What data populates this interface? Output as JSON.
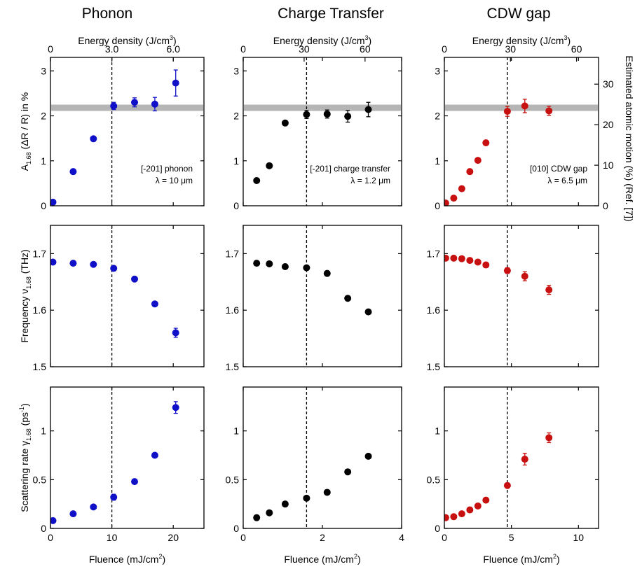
{
  "figure": {
    "columns": [
      {
        "title": "Phonon",
        "top_xlabel": "Energy density (J/cm",
        "top_xlabel_sup": "3",
        "top_xlabel_end": ")",
        "bottom_xlabel": "Fluence (mJ/cm",
        "bottom_xlabel_sup": "2",
        "bottom_xlabel_end": ")",
        "annotation_line1": "[-201] phonon",
        "annotation_line2": "λ = 10 μm"
      },
      {
        "title": "Charge Transfer",
        "top_xlabel": "Energy density (J/cm",
        "top_xlabel_sup": "3",
        "top_xlabel_end": ")",
        "bottom_xlabel": "Fluence (mJ/cm",
        "bottom_xlabel_sup": "2",
        "bottom_xlabel_end": ")",
        "annotation_line1": "[-201] charge transfer",
        "annotation_line2": "λ = 1.2 μm"
      },
      {
        "title": "CDW gap",
        "top_xlabel": "Energy density (J/cm",
        "top_xlabel_sup": "3",
        "top_xlabel_end": ")",
        "bottom_xlabel": "Fluence (mJ/cm",
        "bottom_xlabel_sup": "2",
        "bottom_xlabel_end": ")",
        "annotation_line1": "[010] CDW gap",
        "annotation_line2": "λ = 6.5 μm"
      }
    ],
    "row_ylabels": {
      "amplitude": {
        "main": "A",
        "sub": "1.68",
        "rest": " (ΔR / R) in %"
      },
      "frequency": {
        "main": "Frequency ν",
        "sub": "1.68",
        "rest": " (THz)"
      },
      "scattering": {
        "main": "Scattering rate γ",
        "sub": "1.68",
        "rest": " (ps",
        "sup": "-1",
        "end": ")"
      }
    },
    "right_ylabel": "Estimated atomic motion (%) (Ref. [7])"
  },
  "chart_data": [
    {
      "type": "scatter",
      "column": "Phonon",
      "quantity": "amplitude",
      "color": "#1010c8",
      "x": [
        0.4,
        3.7,
        7.0,
        10.3,
        13.7,
        17.0,
        20.4
      ],
      "y": [
        0.08,
        0.76,
        1.49,
        2.22,
        2.3,
        2.26,
        2.73
      ],
      "yerr": [
        0,
        0,
        0,
        0.08,
        0.1,
        0.15,
        0.29
      ],
      "xlim": [
        0,
        25
      ],
      "xticks": [
        0,
        10,
        20
      ],
      "ylim": [
        0,
        3.3
      ],
      "yticks": [
        0,
        1,
        2,
        3
      ],
      "top_axis": {
        "range": [
          0,
          7.5
        ],
        "ticks": [
          0,
          3.0,
          6.0
        ],
        "tick_labels": [
          "0",
          "3.0",
          "6.0"
        ]
      },
      "threshold_x": 10.0,
      "band_y": 2.18
    },
    {
      "type": "scatter",
      "column": "Phonon",
      "quantity": "frequency",
      "color": "#1010c8",
      "x": [
        0.4,
        3.7,
        7.0,
        10.3,
        13.7,
        17.0,
        20.4
      ],
      "y": [
        1.685,
        1.683,
        1.681,
        1.674,
        1.655,
        1.611,
        1.56
      ],
      "yerr": [
        0,
        0,
        0,
        0,
        0,
        0,
        0.008
      ],
      "xlim": [
        0,
        25
      ],
      "xticks": [
        0,
        10,
        20
      ],
      "ylim": [
        1.5,
        1.75
      ],
      "yticks": [
        1.5,
        1.6,
        1.7
      ],
      "threshold_x": 10.0
    },
    {
      "type": "scatter",
      "column": "Phonon",
      "quantity": "scattering",
      "color": "#1010c8",
      "x": [
        0.4,
        3.7,
        7.0,
        10.3,
        13.7,
        17.0,
        20.4
      ],
      "y": [
        0.08,
        0.15,
        0.22,
        0.32,
        0.48,
        0.75,
        1.24
      ],
      "yerr": [
        0,
        0,
        0,
        0.03,
        0,
        0,
        0.06
      ],
      "xlim": [
        0,
        25
      ],
      "xticks": [
        0,
        10,
        20
      ],
      "ylim": [
        0,
        1.45
      ],
      "yticks": [
        0,
        0.5,
        1.0
      ],
      "threshold_x": 10.0
    },
    {
      "type": "scatter",
      "column": "Charge Transfer",
      "quantity": "amplitude",
      "color": "#000000",
      "x": [
        0.34,
        0.66,
        1.06,
        1.6,
        2.12,
        2.64,
        3.16
      ],
      "y": [
        0.56,
        0.89,
        1.84,
        2.03,
        2.04,
        1.99,
        2.14
      ],
      "yerr": [
        0,
        0,
        0,
        0.09,
        0.09,
        0.13,
        0.16
      ],
      "xlim": [
        0,
        4
      ],
      "xticks": [
        0,
        2,
        4
      ],
      "ylim": [
        0,
        3.3
      ],
      "yticks": [
        0,
        1,
        2,
        3
      ],
      "top_axis": {
        "range": [
          0,
          78
        ],
        "ticks": [
          0,
          30,
          60
        ],
        "tick_labels": [
          "0",
          "30",
          "60"
        ]
      },
      "threshold_x": 1.6,
      "band_y": 2.18
    },
    {
      "type": "scatter",
      "column": "Charge Transfer",
      "quantity": "frequency",
      "color": "#000000",
      "x": [
        0.34,
        0.66,
        1.06,
        1.6,
        2.12,
        2.64,
        3.16
      ],
      "y": [
        1.683,
        1.682,
        1.677,
        1.675,
        1.665,
        1.621,
        1.597
      ],
      "yerr": [
        0,
        0,
        0,
        0,
        0,
        0,
        0
      ],
      "xlim": [
        0,
        4
      ],
      "xticks": [
        0,
        2,
        4
      ],
      "ylim": [
        1.5,
        1.75
      ],
      "yticks": [
        1.5,
        1.6,
        1.7
      ],
      "threshold_x": 1.6
    },
    {
      "type": "scatter",
      "column": "Charge Transfer",
      "quantity": "scattering",
      "color": "#000000",
      "x": [
        0.34,
        0.66,
        1.06,
        1.6,
        2.12,
        2.64,
        3.16
      ],
      "y": [
        0.11,
        0.16,
        0.25,
        0.31,
        0.37,
        0.58,
        0.74
      ],
      "yerr": [
        0,
        0,
        0,
        0,
        0,
        0,
        0
      ],
      "xlim": [
        0,
        4
      ],
      "xticks": [
        0,
        2,
        4
      ],
      "ylim": [
        0,
        1.45
      ],
      "yticks": [
        0,
        0.5,
        1.0
      ],
      "threshold_x": 1.6
    },
    {
      "type": "scatter",
      "column": "CDW gap",
      "quantity": "amplitude",
      "color": "#c81010",
      "x": [
        0.1,
        0.7,
        1.3,
        1.9,
        2.5,
        3.1,
        4.7,
        6.0,
        7.8
      ],
      "y": [
        0.06,
        0.17,
        0.38,
        0.76,
        1.01,
        1.4,
        2.1,
        2.22,
        2.11
      ],
      "yerr": [
        0,
        0,
        0,
        0,
        0,
        0,
        0.11,
        0.15,
        0.1
      ],
      "xlim": [
        0,
        11.5
      ],
      "xticks": [
        0,
        5,
        10
      ],
      "ylim": [
        0,
        3.3
      ],
      "yticks": [
        0,
        1,
        2,
        3
      ],
      "top_axis": {
        "range": [
          0,
          70
        ],
        "ticks": [
          0,
          30,
          60
        ],
        "tick_labels": [
          "0",
          "30",
          "60"
        ]
      },
      "right_axis": {
        "range": [
          0,
          36.6
        ],
        "ticks": [
          0,
          10,
          20,
          30
        ],
        "tick_labels": [
          "0",
          "10",
          "20",
          "30"
        ]
      },
      "threshold_x": 4.7,
      "band_y": 2.18
    },
    {
      "type": "scatter",
      "column": "CDW gap",
      "quantity": "frequency",
      "color": "#c81010",
      "x": [
        0.1,
        0.7,
        1.3,
        1.9,
        2.5,
        3.1,
        4.7,
        6.0,
        7.8
      ],
      "y": [
        1.692,
        1.692,
        1.691,
        1.688,
        1.685,
        1.68,
        1.67,
        1.66,
        1.636
      ],
      "yerr": [
        0,
        0,
        0,
        0,
        0,
        0,
        0.005,
        0.008,
        0.008
      ],
      "xlim": [
        0,
        11.5
      ],
      "xticks": [
        0,
        5,
        10
      ],
      "ylim": [
        1.5,
        1.75
      ],
      "yticks": [
        1.5,
        1.6,
        1.7
      ],
      "threshold_x": 4.7
    },
    {
      "type": "scatter",
      "column": "CDW gap",
      "quantity": "scattering",
      "color": "#c81010",
      "x": [
        0.1,
        0.7,
        1.3,
        1.9,
        2.5,
        3.1,
        4.7,
        6.0,
        7.8
      ],
      "y": [
        0.11,
        0.12,
        0.15,
        0.19,
        0.23,
        0.29,
        0.44,
        0.71,
        0.93
      ],
      "yerr": [
        0,
        0,
        0,
        0,
        0,
        0,
        0.02,
        0.06,
        0.05
      ],
      "xlim": [
        0,
        11.5
      ],
      "xticks": [
        0,
        5,
        10
      ],
      "ylim": [
        0,
        1.45
      ],
      "yticks": [
        0,
        0.5,
        1.0
      ],
      "threshold_x": 4.7
    }
  ]
}
